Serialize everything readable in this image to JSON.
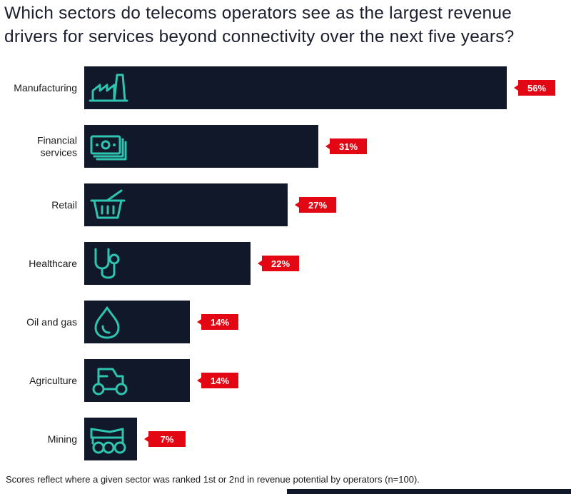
{
  "chart_data": {
    "type": "bar",
    "orientation": "horizontal",
    "title": "Which sectors do telecoms operators see as the largest revenue drivers for services beyond connectivity over the next five years?",
    "categories": [
      {
        "lines": [
          "Manufacturing"
        ],
        "icon": "factory-icon"
      },
      {
        "lines": [
          "Financial",
          "services"
        ],
        "icon": "banknotes-icon"
      },
      {
        "lines": [
          "Retail"
        ],
        "icon": "basket-icon"
      },
      {
        "lines": [
          "Healthcare"
        ],
        "icon": "stethoscope-icon"
      },
      {
        "lines": [
          "Oil and gas"
        ],
        "icon": "droplet-icon"
      },
      {
        "lines": [
          "Agriculture"
        ],
        "icon": "tractor-icon"
      },
      {
        "lines": [
          "Mining"
        ],
        "icon": "dump-truck-icon"
      }
    ],
    "values": [
      56,
      31,
      27,
      22,
      14,
      14,
      7
    ],
    "value_labels": [
      "56%",
      "31%",
      "27%",
      "22%",
      "14%",
      "14%",
      "7%"
    ],
    "units": "%",
    "xlim": [
      0,
      56
    ],
    "colors": {
      "bar": "#10182a",
      "icon": "#2ec4b0",
      "label_bg": "#e30613"
    },
    "footnote": "Scores reflect where a given sector was ranked 1st or 2nd in revenue potential by operators (n=100)."
  }
}
